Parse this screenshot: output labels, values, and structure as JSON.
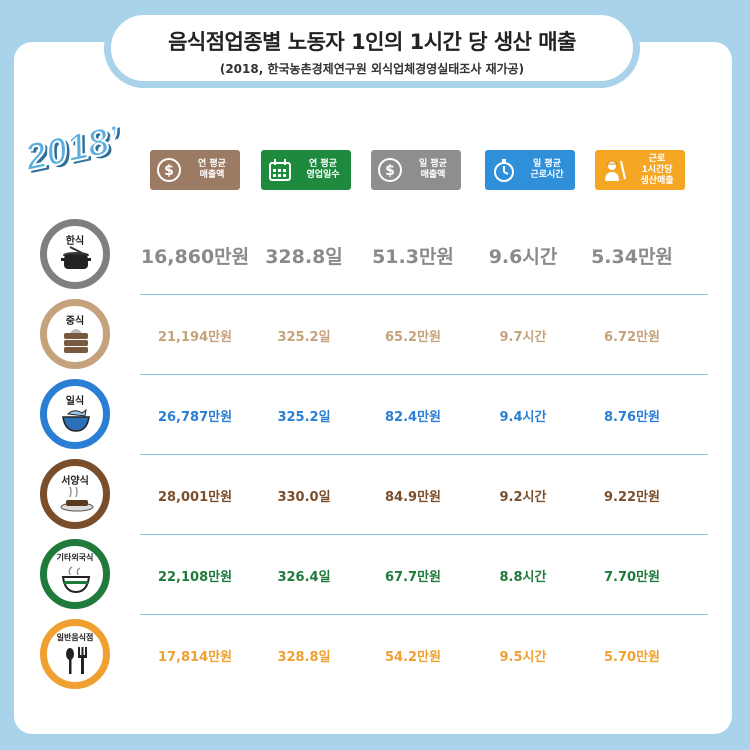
{
  "title": "음식점업종별 노동자 1인의 1시간 당 생산 매출",
  "subtitle": "(2018, 한국농촌경제연구원 외식업체경영실태조사 재가공)",
  "year_badge": "2018’",
  "columns": [
    {
      "label": "연 평균\n매출액",
      "color": "#9b7b63",
      "icon": "coin-icon"
    },
    {
      "label": "연 평균\n영업일수",
      "color": "#1e8a3e",
      "icon": "calendar-icon"
    },
    {
      "label": "일 평균\n매출액",
      "color": "#8e8e8e",
      "icon": "coin-icon"
    },
    {
      "label": "일 평균\n근로시간",
      "color": "#2f8fd8",
      "icon": "stopwatch-icon"
    },
    {
      "label": "근로\n1시간당\n생산매출",
      "color": "#f5a623",
      "icon": "worker-icon"
    }
  ],
  "rows": [
    {
      "category": "한식",
      "color": "#7f7f7f",
      "icon": "pot-icon",
      "values": [
        "16,860만원",
        "328.8일",
        "51.3만원",
        "9.6시간",
        "5.34만원"
      ]
    },
    {
      "category": "중식",
      "color": "#c4a27b",
      "icon": "dumpling-steamer-icon",
      "values": [
        "21,194만원",
        "325.2일",
        "65.2만원",
        "9.7시간",
        "6.72만원"
      ]
    },
    {
      "category": "일식",
      "color": "#2a7fd4",
      "icon": "fish-bowl-icon",
      "values": [
        "26,787만원",
        "325.2일",
        "82.4만원",
        "9.4시간",
        "8.76만원"
      ]
    },
    {
      "category": "서양식",
      "color": "#7a4e2a",
      "icon": "steak-icon",
      "values": [
        "28,001만원",
        "330.0일",
        "84.9만원",
        "9.2시간",
        "9.22만원"
      ]
    },
    {
      "category": "기타외국식",
      "color": "#1f7a3c",
      "icon": "noodle-bowl-icon",
      "values": [
        "22,108만원",
        "326.4일",
        "67.7만원",
        "8.8시간",
        "7.70만원"
      ]
    },
    {
      "category": "일반음식점",
      "color": "#f0a030",
      "icon": "spoon-fork-icon",
      "values": [
        "17,814만원",
        "328.8일",
        "54.2만원",
        "9.5시간",
        "5.70만원"
      ]
    }
  ]
}
